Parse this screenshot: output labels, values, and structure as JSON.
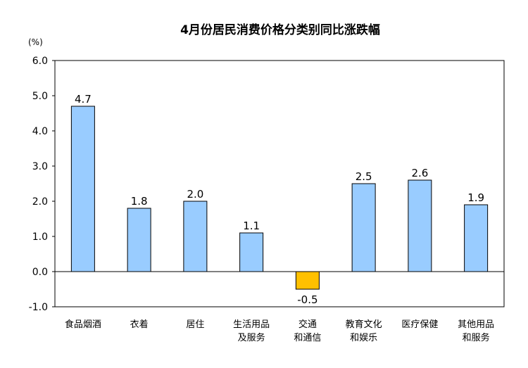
{
  "chart_data": {
    "type": "bar",
    "title": "4月份居民消费价格分类别同比涨跌幅",
    "unit_label": "(%)",
    "ylim": [
      -1.0,
      6.0
    ],
    "yticks": [
      "-1.0",
      "0.0",
      "1.0",
      "2.0",
      "3.0",
      "4.0",
      "5.0",
      "6.0"
    ],
    "categories": [
      [
        "食品烟酒"
      ],
      [
        "衣着"
      ],
      [
        "居住"
      ],
      [
        "生活用品",
        "及服务"
      ],
      [
        "交通",
        "和通信"
      ],
      [
        "教育文化",
        "和娱乐"
      ],
      [
        "医疗保健"
      ],
      [
        "其他用品",
        "和服务"
      ]
    ],
    "values": [
      4.7,
      1.8,
      2.0,
      1.1,
      -0.5,
      2.5,
      2.6,
      1.9
    ],
    "data_labels": [
      "4.7",
      "1.8",
      "2.0",
      "1.1",
      "-0.5",
      "2.5",
      "2.6",
      "1.9"
    ],
    "grid": false,
    "legend": "none",
    "colors": {
      "positive": "#99ccff",
      "negative": "#ffc000",
      "bar_border": "#000000",
      "axis": "#000000"
    }
  }
}
